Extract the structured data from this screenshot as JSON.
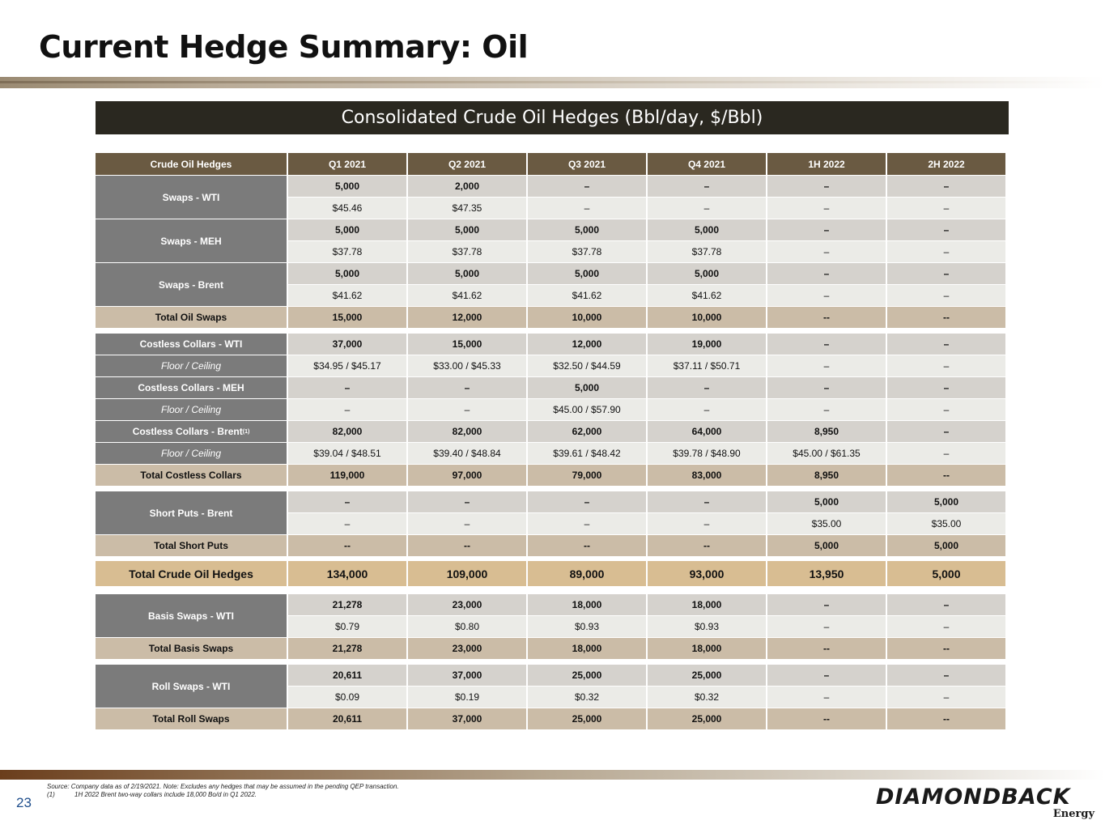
{
  "title": "Current Hedge Summary: Oil",
  "banner": "Consolidated Crude Oil Hedges (Bbl/day, $/Bbl)",
  "header": [
    "Crude Oil Hedges",
    "Q1 2021",
    "Q2 2021",
    "Q3 2021",
    "Q4 2021",
    "1H 2022",
    "2H 2022"
  ],
  "swaps_wti": {
    "label": "Swaps - WTI",
    "vol": [
      "5,000",
      "2,000",
      "–",
      "–",
      "–",
      "–"
    ],
    "price": [
      "$45.46",
      "$47.35",
      "–",
      "–",
      "–",
      "–"
    ]
  },
  "swaps_meh": {
    "label": "Swaps - MEH",
    "vol": [
      "5,000",
      "5,000",
      "5,000",
      "5,000",
      "–",
      "–"
    ],
    "price": [
      "$37.78",
      "$37.78",
      "$37.78",
      "$37.78",
      "–",
      "–"
    ]
  },
  "swaps_brent": {
    "label": "Swaps - Brent",
    "vol": [
      "5,000",
      "5,000",
      "5,000",
      "5,000",
      "–",
      "–"
    ],
    "price": [
      "$41.62",
      "$41.62",
      "$41.62",
      "$41.62",
      "–",
      "–"
    ]
  },
  "total_oil_swaps": {
    "label": "Total Oil Swaps",
    "vals": [
      "15,000",
      "12,000",
      "10,000",
      "10,000",
      "--",
      "--"
    ]
  },
  "collars_wti": {
    "label": "Costless Collars - WTI",
    "floor_label": "Floor / Ceiling",
    "vol": [
      "37,000",
      "15,000",
      "12,000",
      "19,000",
      "–",
      "–"
    ],
    "price": [
      "$34.95 / $45.17",
      "$33.00 / $45.33",
      "$32.50 / $44.59",
      "$37.11 / $50.71",
      "–",
      "–"
    ]
  },
  "collars_meh": {
    "label": "Costless Collars - MEH",
    "floor_label": "Floor / Ceiling",
    "vol": [
      "–",
      "–",
      "5,000",
      "–",
      "–",
      "–"
    ],
    "price": [
      "–",
      "–",
      "$45.00 / $57.90",
      "–",
      "–",
      "–"
    ]
  },
  "collars_brent": {
    "label": "Costless Collars - Brent",
    "sup": "(1)",
    "floor_label": "Floor / Ceiling",
    "vol": [
      "82,000",
      "82,000",
      "62,000",
      "64,000",
      "8,950",
      "–"
    ],
    "price": [
      "$39.04 / $48.51",
      "$39.40 / $48.84",
      "$39.61 / $48.42",
      "$39.78 / $48.90",
      "$45.00 / $61.35",
      "–"
    ]
  },
  "total_collars": {
    "label": "Total Costless Collars",
    "vals": [
      "119,000",
      "97,000",
      "79,000",
      "83,000",
      "8,950",
      "--"
    ]
  },
  "short_puts": {
    "label": "Short Puts - Brent",
    "vol": [
      "–",
      "–",
      "–",
      "–",
      "5,000",
      "5,000"
    ],
    "price": [
      "–",
      "–",
      "–",
      "–",
      "$35.00",
      "$35.00"
    ]
  },
  "total_short_puts": {
    "label": "Total Short Puts",
    "vals": [
      "--",
      "--",
      "--",
      "--",
      "5,000",
      "5,000"
    ]
  },
  "grand_total": {
    "label": "Total Crude Oil Hedges",
    "vals": [
      "134,000",
      "109,000",
      "89,000",
      "93,000",
      "13,950",
      "5,000"
    ]
  },
  "basis_swaps": {
    "label": "Basis Swaps - WTI",
    "vol": [
      "21,278",
      "23,000",
      "18,000",
      "18,000",
      "–",
      "–"
    ],
    "price": [
      "$0.79",
      "$0.80",
      "$0.93",
      "$0.93",
      "–",
      "–"
    ]
  },
  "total_basis": {
    "label": "Total Basis Swaps",
    "vals": [
      "21,278",
      "23,000",
      "18,000",
      "18,000",
      "--",
      "--"
    ]
  },
  "roll_swaps": {
    "label": "Roll Swaps - WTI",
    "vol": [
      "20,611",
      "37,000",
      "25,000",
      "25,000",
      "–",
      "–"
    ],
    "price": [
      "$0.09",
      "$0.19",
      "$0.32",
      "$0.32",
      "–",
      "–"
    ]
  },
  "total_roll": {
    "label": "Total Roll Swaps",
    "vals": [
      "20,611",
      "37,000",
      "25,000",
      "25,000",
      "--",
      "--"
    ]
  },
  "footer": {
    "page_number": "23",
    "source": "Source: Company data as of 2/19/2021. Note: Excludes any hedges that may be assumed in the pending QEP transaction.",
    "footnote_mark": "(1)",
    "footnote": "1H 2022 Brent two-way collars include 18,000 Bo/d in Q1 2022.",
    "logo_main": "DIAMONDBACK",
    "logo_sub": "Energy"
  }
}
